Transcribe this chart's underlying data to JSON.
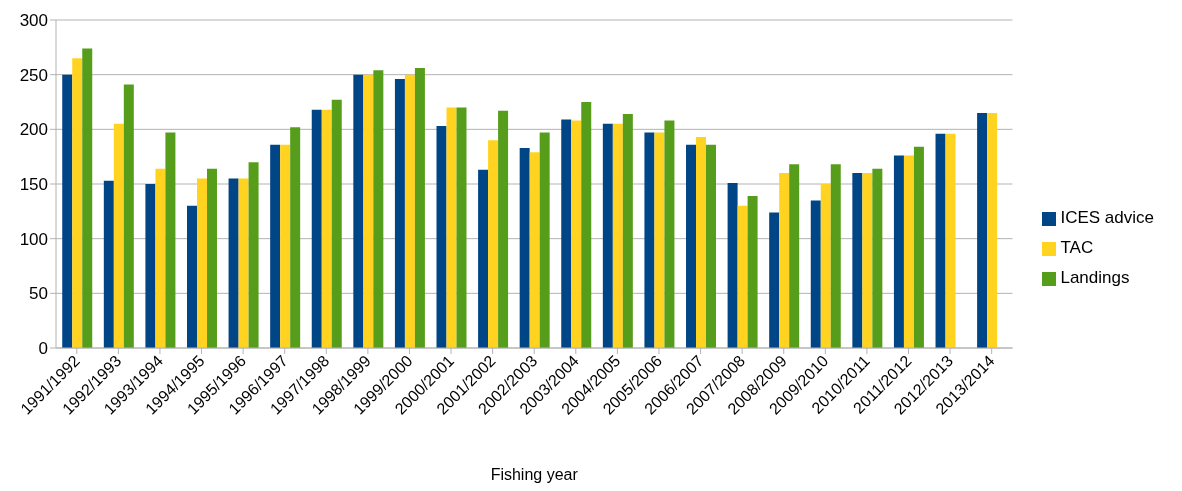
{
  "chart_data": {
    "type": "bar",
    "xlabel": "Fishing year",
    "categories": [
      "1991/1992",
      "1992/1993",
      "1993/1994",
      "1994/1995",
      "1995/1996",
      "1996/1997",
      "1997/1998",
      "1998/1999",
      "1999/2000",
      "2000/2001",
      "2001/2002",
      "2002/2003",
      "2003/2004",
      "2004/2005",
      "2005/2006",
      "2006/2007",
      "2007/2008",
      "2008/2009",
      "2009/2010",
      "2010/2011",
      "2011/2012",
      "2012/2013",
      "2013/2014"
    ],
    "series": [
      {
        "name": "ICES advice",
        "color": "#004586",
        "values": [
          250,
          153,
          150,
          130,
          155,
          186,
          218,
          250,
          246,
          203,
          163,
          183,
          209,
          205,
          197,
          186,
          151,
          124,
          135,
          160,
          176,
          196,
          215
        ]
      },
      {
        "name": "TAC",
        "color": "#ffd320",
        "values": [
          265,
          205,
          164,
          155,
          155,
          186,
          218,
          250,
          250,
          220,
          190,
          179,
          208,
          205,
          197,
          193,
          130,
          160,
          150,
          160,
          176,
          196,
          215
        ]
      },
      {
        "name": "Landings",
        "color": "#579d1c",
        "values": [
          274,
          241,
          197,
          164,
          170,
          202,
          227,
          254,
          256,
          220,
          217,
          197,
          225,
          214,
          208,
          186,
          139,
          168,
          168,
          164,
          184,
          null,
          null
        ]
      }
    ],
    "ylim": [
      0,
      300
    ],
    "yticks": [
      0,
      50,
      100,
      150,
      200,
      250,
      300
    ],
    "grid": "y",
    "legend": "right"
  }
}
